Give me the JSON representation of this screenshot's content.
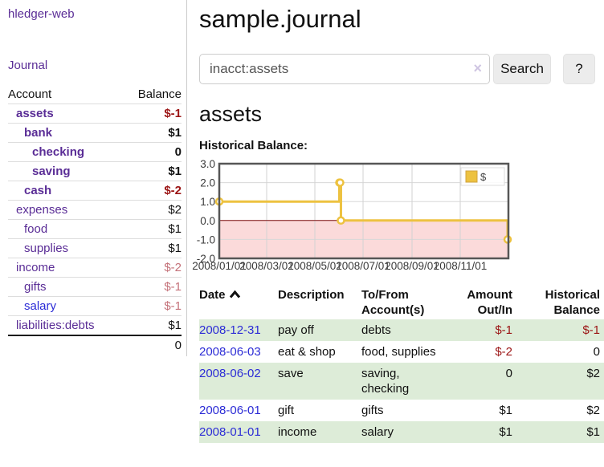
{
  "sidebar": {
    "app_title": "hledger-web",
    "journal_label": "Journal",
    "accounts": {
      "header_account": "Account",
      "header_balance": "Balance",
      "rows": [
        {
          "name": "assets",
          "balance": "$-1",
          "indent": 1,
          "bold": true,
          "balance_style": "neg-strong"
        },
        {
          "name": "bank",
          "balance": "$1",
          "indent": 2,
          "bold": true,
          "balance_style": "pos"
        },
        {
          "name": "checking",
          "balance": "0",
          "indent": 3,
          "bold": true,
          "balance_style": "pos"
        },
        {
          "name": "saving",
          "balance": "$1",
          "indent": 3,
          "bold": true,
          "balance_style": "pos"
        },
        {
          "name": "cash",
          "balance": "$-2",
          "indent": 2,
          "bold": true,
          "balance_style": "neg-strong"
        },
        {
          "name": "expenses",
          "balance": "$2",
          "indent": 1,
          "bold": false,
          "balance_style": "pos"
        },
        {
          "name": "food",
          "balance": "$1",
          "indent": 2,
          "bold": false,
          "balance_style": "pos"
        },
        {
          "name": "supplies",
          "balance": "$1",
          "indent": 2,
          "bold": false,
          "balance_style": "pos"
        },
        {
          "name": "income",
          "balance": "$-2",
          "indent": 1,
          "bold": false,
          "balance_style": "neg-muted"
        },
        {
          "name": "gifts",
          "balance": "$-1",
          "indent": 2,
          "bold": false,
          "balance_style": "neg-muted"
        },
        {
          "name": "salary",
          "balance": "$-1",
          "indent": 2,
          "bold": false,
          "balance_style": "neg-muted",
          "link_style": "unvisited"
        },
        {
          "name": "liabilities:debts",
          "balance": "$1",
          "indent": 1,
          "bold": false,
          "balance_style": "pos"
        }
      ],
      "total": "0"
    }
  },
  "main": {
    "title": "sample.journal",
    "search": {
      "value": "inacct:assets",
      "clear_icon": "×",
      "button_label": "Search",
      "help_label": "?"
    },
    "account_heading": "assets",
    "chart_label": "Historical Balance:"
  },
  "chart_data": {
    "type": "line",
    "title": "Historical Balance:",
    "step": true,
    "series": [
      {
        "name": "$",
        "color": "#EDC240",
        "points": [
          [
            "2008-01-01",
            1
          ],
          [
            "2008-06-01",
            2
          ],
          [
            "2008-06-02",
            2
          ],
          [
            "2008-06-03",
            0
          ],
          [
            "2008-12-31",
            -1
          ]
        ]
      }
    ],
    "x_ticks": [
      {
        "label": "2008/01/01",
        "date": "2008-01-01"
      },
      {
        "label": "2008/03/01",
        "date": "2008-03-01"
      },
      {
        "label": "2008/05/01",
        "date": "2008-05-01"
      },
      {
        "label": "2008/07/01",
        "date": "2008-07-01"
      },
      {
        "label": "2008/09/01",
        "date": "2008-09-01"
      },
      {
        "label": "2008/11/01",
        "date": "2008-11-01"
      }
    ],
    "y_ticks": [
      3.0,
      2.0,
      1.0,
      0.0,
      -1.0,
      -2.0
    ],
    "ylim": [
      -2,
      3
    ],
    "x_range": [
      "2008-01-01",
      "2009-01-01"
    ],
    "legend_label": "$",
    "legend_position": "top-right",
    "grid": true,
    "line_color": "#EDC240",
    "grid_color": "#d8d8d8",
    "border_color": "#565656",
    "zero_line_color": "#7a0c0c",
    "negative_region_color": "#fbdada"
  },
  "register": {
    "headers": {
      "date": "Date",
      "description": "Description",
      "accounts": "To/From Account(s)",
      "amount": "Amount Out/In",
      "balance": "Historical Balance"
    },
    "sort": {
      "column": "date",
      "direction": "ascending"
    },
    "rows": [
      {
        "date": "2008-12-31",
        "description": "pay off",
        "accounts": "debts",
        "amount": "$-1",
        "amount_style": "neg",
        "balance": "$-1",
        "balance_style": "neg"
      },
      {
        "date": "2008-06-03",
        "description": "eat & shop",
        "accounts": "food, supplies",
        "amount": "$-2",
        "amount_style": "neg",
        "balance": "0",
        "balance_style": "pos"
      },
      {
        "date": "2008-06-02",
        "description": "save",
        "accounts": "saving, checking",
        "amount": "0",
        "amount_style": "pos",
        "balance": "$2",
        "balance_style": "pos"
      },
      {
        "date": "2008-06-01",
        "description": "gift",
        "accounts": "gifts",
        "amount": "$1",
        "amount_style": "pos",
        "balance": "$2",
        "balance_style": "pos"
      },
      {
        "date": "2008-01-01",
        "description": "income",
        "accounts": "salary",
        "amount": "$1",
        "amount_style": "pos",
        "balance": "$1",
        "balance_style": "pos"
      }
    ]
  }
}
